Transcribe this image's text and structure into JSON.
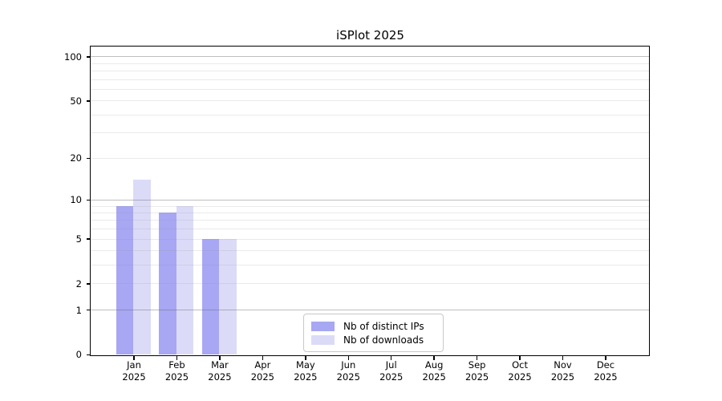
{
  "chart_data": {
    "type": "bar",
    "title": "iSPlot 2025",
    "x_months": [
      "Jan",
      "Feb",
      "Mar",
      "Apr",
      "May",
      "Jun",
      "Jul",
      "Aug",
      "Sep",
      "Oct",
      "Nov",
      "Dec"
    ],
    "x_year": "2025",
    "series": [
      {
        "name": "Nb of distinct IPs",
        "color": "#a7a7f4",
        "values": [
          9,
          8,
          5,
          0,
          0,
          0,
          0,
          0,
          0,
          0,
          0,
          0
        ]
      },
      {
        "name": "Nb of downloads",
        "color": "#dbdbf8",
        "values": [
          14,
          9,
          5,
          0,
          0,
          0,
          0,
          0,
          0,
          0,
          0,
          0
        ]
      }
    ],
    "yscale": "log1p",
    "ylim": [
      0,
      120
    ],
    "yticks": [
      0,
      1,
      2,
      5,
      10,
      20,
      50,
      100
    ],
    "major_gridline_values": [
      1,
      10,
      100
    ],
    "minor_gridline_values": [
      2,
      3,
      4,
      5,
      6,
      7,
      8,
      9,
      20,
      30,
      40,
      50,
      60,
      70,
      80,
      90
    ],
    "grid": true,
    "legend": {
      "position": "lower center",
      "items": [
        "Nb of distinct IPs",
        "Nb of downloads"
      ]
    }
  }
}
